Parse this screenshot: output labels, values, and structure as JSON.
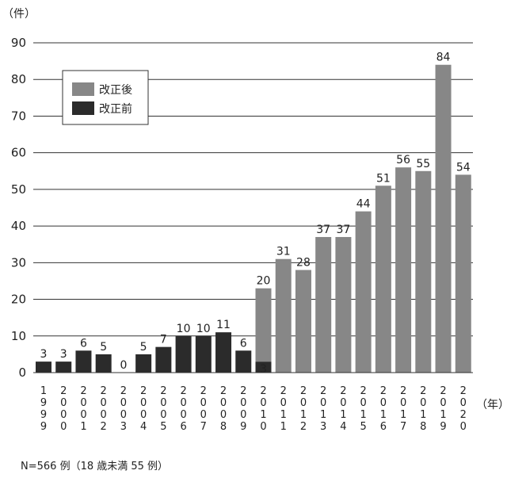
{
  "chart_data": {
    "type": "bar",
    "stacked": true,
    "y_unit": "（件）",
    "x_unit": "（年）",
    "ylim": [
      0,
      90
    ],
    "yticks": [
      0,
      10,
      20,
      30,
      40,
      50,
      60,
      70,
      80,
      90
    ],
    "grid": true,
    "legend_position": "top-left",
    "categories": [
      "1999",
      "2000",
      "2001",
      "2002",
      "2003",
      "2004",
      "2005",
      "2006",
      "2007",
      "2008",
      "2009",
      "2010",
      "2011",
      "2012",
      "2013",
      "2014",
      "2015",
      "2016",
      "2017",
      "2018",
      "2019",
      "2020"
    ],
    "series": [
      {
        "name": "改正前",
        "color": "#2b2b2b",
        "values": [
          3,
          3,
          6,
          5,
          0,
          5,
          7,
          10,
          10,
          11,
          6,
          3,
          0,
          0,
          0,
          0,
          0,
          0,
          0,
          0,
          0,
          0
        ]
      },
      {
        "name": "改正後",
        "color": "#878787",
        "values": [
          0,
          0,
          0,
          0,
          0,
          0,
          0,
          0,
          0,
          0,
          0,
          20,
          31,
          28,
          37,
          37,
          44,
          51,
          56,
          55,
          84,
          54
        ]
      }
    ],
    "data_labels": [
      {
        "category": "1999",
        "series": "改正前",
        "text": "3"
      },
      {
        "category": "2000",
        "series": "改正前",
        "text": "3"
      },
      {
        "category": "2001",
        "series": "改正前",
        "text": "6"
      },
      {
        "category": "2002",
        "series": "改正前",
        "text": "5"
      },
      {
        "category": "2003",
        "series": "改正前",
        "text": "0"
      },
      {
        "category": "2004",
        "series": "改正前",
        "text": "5"
      },
      {
        "category": "2005",
        "series": "改正前",
        "text": "7"
      },
      {
        "category": "2006",
        "series": "改正前",
        "text": "10"
      },
      {
        "category": "2007",
        "series": "改正前",
        "text": "10"
      },
      {
        "category": "2008",
        "series": "改正前",
        "text": "11"
      },
      {
        "category": "2009",
        "series": "改正前",
        "text": "6"
      },
      {
        "category": "2010",
        "series": "改正前",
        "text": "3"
      },
      {
        "category": "2010",
        "series": "改正後",
        "text": "20"
      },
      {
        "category": "2011",
        "series": "改正後",
        "text": "31"
      },
      {
        "category": "2012",
        "series": "改正後",
        "text": "28"
      },
      {
        "category": "2013",
        "series": "改正後",
        "text": "37"
      },
      {
        "category": "2014",
        "series": "改正後",
        "text": "37"
      },
      {
        "category": "2015",
        "series": "改正後",
        "text": "44"
      },
      {
        "category": "2016",
        "series": "改正後",
        "text": "51"
      },
      {
        "category": "2017",
        "series": "改正後",
        "text": "56"
      },
      {
        "category": "2018",
        "series": "改正後",
        "text": "55"
      },
      {
        "category": "2019",
        "series": "改正後",
        "text": "84"
      },
      {
        "category": "2020",
        "series": "改正後",
        "text": "54"
      }
    ]
  },
  "legend": [
    {
      "label": "改正後",
      "color": "#878787"
    },
    {
      "label": "改正前",
      "color": "#2b2b2b"
    }
  ],
  "note": "N=566 例（18 歳未満 55 例）"
}
